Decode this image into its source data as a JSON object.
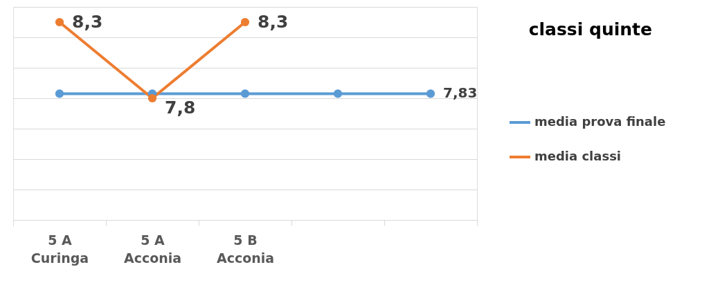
{
  "chart_data": {
    "type": "line",
    "title": "classi quinte",
    "categories": [
      "5 A Curinga",
      "5 A Acconia",
      "5 B Acconia",
      null,
      null
    ],
    "series": [
      {
        "name": "media prova finale",
        "color": "#5b9bd5",
        "values": [
          7.83,
          7.83,
          7.83,
          7.83,
          7.83
        ],
        "value_labels": [
          null,
          null,
          null,
          null,
          "7,83"
        ]
      },
      {
        "name": "media classi",
        "color": "#ed7d31",
        "values": [
          8.3,
          7.8,
          8.3,
          null,
          null
        ],
        "value_labels": [
          "8,3",
          "7,8",
          "8,3",
          null,
          null
        ]
      }
    ],
    "ylim": [
      7.0,
      8.4
    ],
    "yticks": [
      {
        "value": 7.0,
        "label": null
      },
      {
        "value": 7.2,
        "label": null
      },
      {
        "value": 7.4,
        "label": null
      },
      {
        "value": 7.6,
        "label": null
      },
      {
        "value": 7.8,
        "label": null
      },
      {
        "value": 8.0,
        "label": null
      },
      {
        "value": 8.2,
        "label": null
      },
      {
        "value": 8.4,
        "label": null
      }
    ],
    "tick_labels": "x",
    "grid": "y",
    "legend": "right",
    "marker": "circle",
    "line_style": "solid"
  }
}
